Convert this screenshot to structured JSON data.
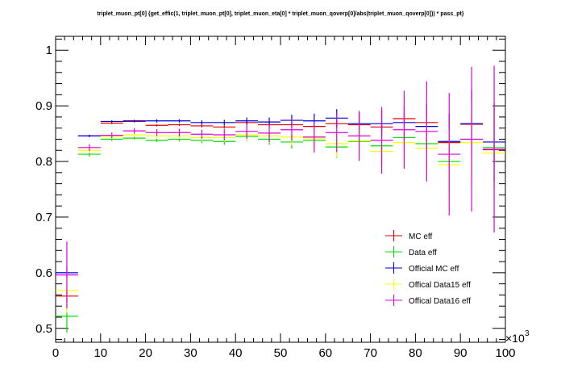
{
  "chart_data": {
    "type": "scatter",
    "title": "triplet_muon_pt[0]  {get_effic(1, triplet_muon_pt[0], triplet_muon_eta[0] * triplet_muon_qoverp[0]/abs(triplet_muon_qoverp[0])) * pass_pt}",
    "xlabel": "",
    "ylabel": "",
    "x_multiplier_label": "×10",
    "x_multiplier_exp": "3",
    "xlim": [
      0,
      100
    ],
    "ylim": [
      0.475,
      1.025
    ],
    "x_ticks": [
      0,
      10,
      20,
      30,
      40,
      50,
      60,
      70,
      80,
      90,
      100
    ],
    "y_ticks": [
      0.5,
      0.6,
      0.7,
      0.8,
      0.9,
      1
    ],
    "x_tick_labels": [
      "0",
      "10",
      "20",
      "30",
      "40",
      "50",
      "60",
      "70",
      "80",
      "90",
      "100"
    ],
    "y_tick_labels": [
      "0.5",
      "0.6",
      "0.7",
      "0.8",
      "0.9",
      "1"
    ],
    "grid": false,
    "legend_position": "right",
    "bin_edges": [
      0,
      5,
      10,
      15,
      20,
      25,
      30,
      35,
      40,
      45,
      50,
      55,
      60,
      65,
      70,
      75,
      80,
      85,
      90,
      95,
      100
    ],
    "series": [
      {
        "name": "MC eff",
        "color": "#e00000",
        "values": [
          0.558,
          0.846,
          0.869,
          0.872,
          0.865,
          0.866,
          0.864,
          0.862,
          0.87,
          0.866,
          0.866,
          0.863,
          0.868,
          0.866,
          0.862,
          0.877,
          0.87,
          0.834,
          0.867,
          0.821
        ],
        "errors": [
          0.01,
          0.002,
          0.002,
          0.002,
          0.002,
          0.002,
          0.003,
          0.003,
          0.004,
          0.004,
          0.005,
          0.006,
          0.006,
          0.007,
          0.008,
          0.009,
          0.01,
          0.012,
          0.014,
          0.016
        ]
      },
      {
        "name": "Data eff",
        "color": "#00e000",
        "values": [
          0.522,
          0.813,
          0.84,
          0.842,
          0.838,
          0.84,
          0.838,
          0.836,
          0.845,
          0.84,
          0.835,
          0.838,
          0.826,
          0.836,
          0.828,
          0.843,
          0.832,
          0.8,
          0.84,
          0.825
        ],
        "errors": [
          0.03,
          0.004,
          0.003,
          0.003,
          0.003,
          0.004,
          0.005,
          0.006,
          0.008,
          0.01,
          0.012,
          0.015,
          0.02,
          0.025,
          0.03,
          0.035,
          0.045,
          0.055,
          0.06,
          0.07
        ]
      },
      {
        "name": "Official MC eff",
        "color": "#0000e0",
        "values": [
          0.6,
          0.846,
          0.872,
          0.873,
          0.873,
          0.873,
          0.87,
          0.87,
          0.873,
          0.871,
          0.874,
          0.873,
          0.878,
          0.868,
          0.868,
          0.87,
          0.863,
          0.836,
          0.868,
          0.835
        ],
        "errors": [
          0.01,
          0.002,
          0.002,
          0.002,
          0.003,
          0.003,
          0.004,
          0.005,
          0.006,
          0.008,
          0.01,
          0.013,
          0.016,
          0.02,
          0.025,
          0.03,
          0.04,
          0.05,
          0.06,
          0.07
        ]
      },
      {
        "name": "Offical Data15 eff",
        "color": "#ffff00",
        "values": [
          0.568,
          0.82,
          0.845,
          0.848,
          0.846,
          0.846,
          0.843,
          0.843,
          0.848,
          0.846,
          0.844,
          0.842,
          0.832,
          0.837,
          0.818,
          0.834,
          0.824,
          0.794,
          0.834,
          0.815
        ],
        "errors": [
          0.04,
          0.005,
          0.004,
          0.004,
          0.004,
          0.005,
          0.006,
          0.008,
          0.01,
          0.012,
          0.015,
          0.02,
          0.025,
          0.03,
          0.035,
          0.045,
          0.055,
          0.065,
          0.075,
          0.085
        ]
      },
      {
        "name": "Offical Data16 eff",
        "color": "#e000e0",
        "values": [
          0.596,
          0.825,
          0.847,
          0.855,
          0.852,
          0.852,
          0.849,
          0.848,
          0.854,
          0.851,
          0.857,
          0.844,
          0.852,
          0.846,
          0.838,
          0.857,
          0.854,
          0.813,
          0.84,
          0.822
        ],
        "errors": [
          0.06,
          0.006,
          0.005,
          0.005,
          0.006,
          0.007,
          0.008,
          0.01,
          0.013,
          0.016,
          0.02,
          0.028,
          0.035,
          0.045,
          0.06,
          0.07,
          0.09,
          0.11,
          0.13,
          0.15
        ]
      }
    ]
  }
}
